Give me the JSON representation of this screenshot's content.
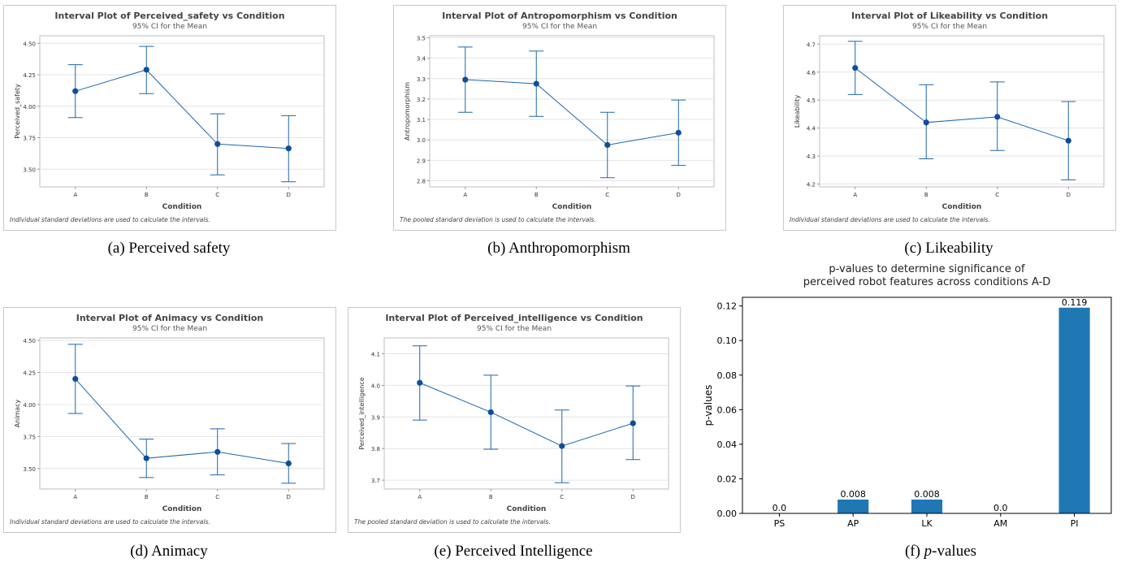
{
  "chart_data": [
    {
      "type": "interval",
      "title": "Interval Plot of Perceived_safety vs Condition",
      "subtitle": "95% CI for the Mean",
      "xlabel": "Condition",
      "ylabel": "Perceived_safety",
      "categories": [
        "A",
        "B",
        "C",
        "D"
      ],
      "means": [
        4.12,
        4.29,
        3.7,
        3.665
      ],
      "lower": [
        3.91,
        4.1,
        3.455,
        3.4
      ],
      "upper": [
        4.33,
        4.475,
        3.94,
        3.925
      ],
      "ylim": [
        3.36,
        4.56
      ],
      "yticks": [
        "3.50",
        "3.75",
        "4.00",
        "4.25",
        "4.50"
      ],
      "note": "Individual standard deviations are used to calculate the intervals.",
      "caption": "(a) Perceived safety"
    },
    {
      "type": "interval",
      "title": "Interval Plot of Antropomorphism vs Condition",
      "subtitle": "95% CI for the Mean",
      "xlabel": "Condition",
      "ylabel": "Antropomorphism",
      "categories": [
        "A",
        "B",
        "C",
        "D"
      ],
      "means": [
        3.295,
        3.275,
        2.975,
        3.035
      ],
      "lower": [
        3.135,
        3.115,
        2.815,
        2.875
      ],
      "upper": [
        3.455,
        3.435,
        3.135,
        3.195
      ],
      "ylim": [
        2.77,
        3.51
      ],
      "yticks": [
        "2.8",
        "2.9",
        "3.0",
        "3.1",
        "3.2",
        "3.3",
        "3.4",
        "3.5"
      ],
      "note": "The pooled standard deviation is used to calculate the intervals.",
      "caption": "(b) Anthropomorphism"
    },
    {
      "type": "interval",
      "title": "Interval Plot of Likeability vs Condition",
      "subtitle": "95% CI for the Mean",
      "xlabel": "Condition",
      "ylabel": "Likeability",
      "categories": [
        "A",
        "B",
        "C",
        "D"
      ],
      "means": [
        4.615,
        4.42,
        4.44,
        4.355
      ],
      "lower": [
        4.52,
        4.29,
        4.32,
        4.215
      ],
      "upper": [
        4.71,
        4.555,
        4.565,
        4.495
      ],
      "ylim": [
        4.19,
        4.73
      ],
      "yticks": [
        "4.2",
        "4.3",
        "4.4",
        "4.5",
        "4.6",
        "4.7"
      ],
      "note": "Individual standard deviations are used to calculate the intervals.",
      "caption": "(c) Likeability"
    },
    {
      "type": "interval",
      "title": "Interval Plot of Animacy vs Condition",
      "subtitle": "95% CI for the Mean",
      "xlabel": "Condition",
      "ylabel": "Animacy",
      "categories": [
        "A",
        "B",
        "C",
        "D"
      ],
      "means": [
        4.2,
        3.58,
        3.63,
        3.54
      ],
      "lower": [
        3.93,
        3.43,
        3.45,
        3.385
      ],
      "upper": [
        4.47,
        3.73,
        3.81,
        3.695
      ],
      "ylim": [
        3.34,
        4.52
      ],
      "yticks": [
        "3.50",
        "3.75",
        "4.00",
        "4.25",
        "4.50"
      ],
      "note": "Individual standard deviations are used to calculate the intervals.",
      "caption": "(d) Animacy"
    },
    {
      "type": "interval",
      "title": "Interval Plot of Perceived_intelligence vs Condition",
      "subtitle": "95% CI for the Mean",
      "xlabel": "Condition",
      "ylabel": "Perceived_intelligence",
      "categories": [
        "A",
        "B",
        "C",
        "D"
      ],
      "means": [
        4.008,
        3.915,
        3.808,
        3.88
      ],
      "lower": [
        3.89,
        3.798,
        3.692,
        3.765
      ],
      "upper": [
        4.125,
        4.032,
        3.922,
        3.998
      ],
      "ylim": [
        3.672,
        4.15
      ],
      "yticks": [
        "3.7",
        "3.8",
        "3.9",
        "4.0",
        "4.1"
      ],
      "note": "The pooled standard deviation is used to calculate the intervals.",
      "caption": "(e) Perceived Intelligence"
    },
    {
      "type": "bar",
      "title_lines": [
        "p-values to determine significance of",
        "perceived robot features across conditions A-D"
      ],
      "xlabel": "",
      "ylabel": "p-values",
      "categories": [
        "PS",
        "AP",
        "LK",
        "AM",
        "PI"
      ],
      "values": [
        0.0,
        0.008,
        0.008,
        0.0,
        0.119
      ],
      "value_labels": [
        "0.0",
        "0.008",
        "0.008",
        "0.0",
        "0.119"
      ],
      "ylim": [
        0,
        0.125
      ],
      "yticks": [
        "0.00",
        "0.02",
        "0.04",
        "0.06",
        "0.08",
        "0.10",
        "0.12"
      ],
      "caption_prefix": "(f) ",
      "caption_italic": "p",
      "caption_suffix": "-values"
    }
  ],
  "colors": {
    "line": "#1f66a8",
    "point": "#0c4f9c",
    "grid": "#e4e4e4",
    "frame": "#c8c8c8",
    "bar": "#1f77b4"
  }
}
